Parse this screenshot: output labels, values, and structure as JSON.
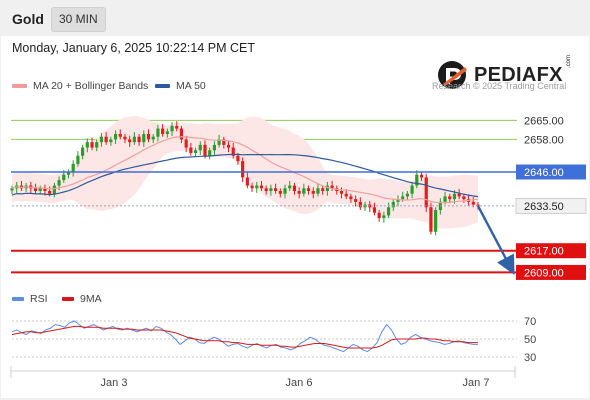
{
  "header": {
    "symbol": "Gold",
    "timeframe": "30 MIN"
  },
  "datetime": "Monday, January 6, 2025 10:22:14 PM CET",
  "legend": {
    "ma20_bb_label": "MA 20 + Bollinger Bands",
    "ma50_label": "MA 50",
    "rsi_label": "RSI",
    "rsi_ma_label": "9MA"
  },
  "brand": {
    "name": "PEDIAFX",
    "suffix": ".com",
    "copyright": "Research © 2025 Trading Central"
  },
  "colors": {
    "green_level": "#8fcc5c",
    "blue_level": "#3f6fd8",
    "red_level": "#e01010",
    "arrow": "#3062a8",
    "candle_up": "#2a9d2a",
    "candle_down": "#e21d1d",
    "bollinger_fill": "#fde6e6",
    "ma20": "#f0a0a0",
    "ma50": "#2f5a9a",
    "rsi": "#5b8de0",
    "rsi_ma": "#d81818"
  },
  "chart_data": {
    "type": "candlestick",
    "x_ticks": [
      "Jan 3",
      "Jan 6",
      "Jan 7"
    ],
    "y_range": [
      2604,
      2674
    ],
    "price_levels": [
      {
        "value": 2665.0,
        "label": "2665.00",
        "kind": "resistance",
        "color": "green"
      },
      {
        "value": 2658.0,
        "label": "2658.00",
        "kind": "resistance",
        "color": "green"
      },
      {
        "value": 2646.0,
        "label": "2646.00",
        "kind": "pivot",
        "color": "blue"
      },
      {
        "value": 2633.5,
        "label": "2633.50",
        "kind": "last-price",
        "color": "gray"
      },
      {
        "value": 2617.0,
        "label": "2617.00",
        "kind": "support",
        "color": "red"
      },
      {
        "value": 2609.0,
        "label": "2609.00",
        "kind": "support",
        "color": "red"
      }
    ],
    "forecast_arrow": {
      "from": 2633.5,
      "to": 2609.0,
      "direction": "down"
    },
    "price_series": [
      2640,
      2641,
      2640,
      2641,
      2640,
      2639,
      2640,
      2639,
      2638,
      2641,
      2643,
      2645,
      2646,
      2649,
      2652,
      2655,
      2657,
      2655,
      2657,
      2659,
      2657,
      2658,
      2660,
      2659,
      2658,
      2657,
      2659,
      2657,
      2660,
      2658,
      2659,
      2662,
      2660,
      2661,
      2663,
      2662,
      2658,
      2655,
      2653,
      2654,
      2656,
      2652,
      2654,
      2656,
      2658,
      2656,
      2655,
      2652,
      2650,
      2644,
      2641,
      2640,
      2641,
      2640,
      2639,
      2640,
      2639,
      2638,
      2640,
      2641,
      2639,
      2638,
      2640,
      2639,
      2638,
      2640,
      2639,
      2641,
      2640,
      2639,
      2638,
      2637,
      2636,
      2635,
      2633,
      2634,
      2633,
      2631,
      2629,
      2630,
      2633,
      2635,
      2636,
      2637,
      2638,
      2641,
      2645,
      2644,
      2633,
      2624,
      2632,
      2635,
      2637,
      2636,
      2638,
      2637,
      2636,
      2635,
      2634,
      2633.5
    ],
    "indicators": [
      {
        "name": "MA 20 + Bollinger Bands",
        "type": "moving-average-with-bands"
      },
      {
        "name": "MA 50",
        "type": "moving-average"
      }
    ],
    "rsi": {
      "levels": [
        70,
        50,
        30
      ],
      "y_range": [
        20,
        80
      ],
      "series": [
        58,
        60,
        57,
        55,
        59,
        58,
        56,
        60,
        62,
        66,
        65,
        63,
        68,
        70,
        66,
        62,
        64,
        66,
        63,
        60,
        62,
        64,
        61,
        60,
        62,
        60,
        58,
        60,
        62,
        59,
        64,
        62,
        58,
        55,
        50,
        44,
        48,
        52,
        50,
        46,
        45,
        49,
        52,
        50,
        46,
        42,
        44,
        45,
        42,
        40,
        43,
        45,
        42,
        40,
        43,
        44,
        41,
        40,
        38,
        40,
        45,
        48,
        52,
        50,
        46,
        43,
        42,
        40,
        38,
        36,
        40,
        44,
        42,
        38,
        36,
        40,
        46,
        58,
        66,
        60,
        50,
        44,
        46,
        52,
        55,
        52,
        50,
        48,
        47,
        46,
        44,
        45,
        47,
        48,
        46,
        45,
        44,
        44
      ],
      "ma_series": [
        55,
        56,
        57,
        58,
        58,
        57,
        57,
        58,
        59,
        60,
        61,
        62,
        63,
        64,
        64,
        63,
        63,
        63,
        63,
        62,
        62,
        62,
        62,
        61,
        61,
        61,
        60,
        60,
        60,
        60,
        60,
        60,
        59,
        58,
        57,
        55,
        53,
        51,
        50,
        49,
        48,
        48,
        48,
        48,
        47,
        47,
        46,
        46,
        45,
        44,
        44,
        44,
        43,
        43,
        43,
        43,
        42,
        42,
        41,
        41,
        42,
        43,
        44,
        45,
        45,
        45,
        44,
        43,
        42,
        41,
        40,
        40,
        40,
        40,
        40,
        40,
        41,
        43,
        46,
        49,
        50,
        50,
        50,
        50,
        50,
        51,
        51,
        50,
        50,
        49,
        48,
        48,
        47,
        47,
        47,
        46,
        46,
        46
      ]
    }
  }
}
